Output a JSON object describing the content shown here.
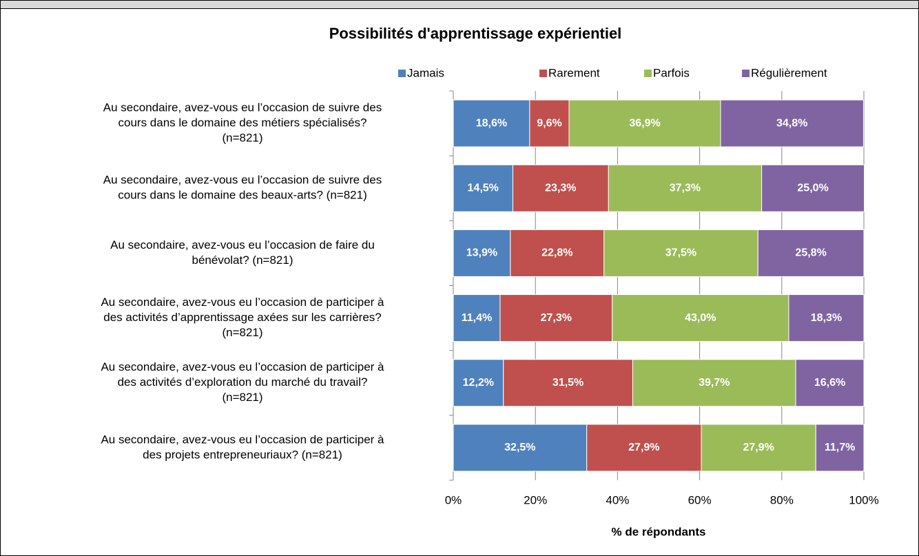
{
  "chart_data": {
    "type": "stacked-barh",
    "title": "Possibilités d'apprentissage expérientiel",
    "xlabel": "% de répondants",
    "categories": [
      [
        "Au secondaire, avez-vous eu l’occasion de suivre des",
        "cours dans le domaine des métiers spécialisés?",
        "(n=821)"
      ],
      [
        "Au secondaire, avez-vous eu l’occasion de suivre des",
        "cours dans le domaine des beaux-arts? (n=821)"
      ],
      [
        "Au secondaire, avez-vous eu l’occasion de faire du",
        "bénévolat? (n=821)"
      ],
      [
        "Au secondaire, avez-vous eu l’occasion de participer à",
        "des activités d’apprentissage axées sur les carrières?",
        "(n=821)"
      ],
      [
        "Au secondaire, avez-vous eu l’occasion de participer à",
        "des activités d’exploration du marché du travail?",
        "(n=821)"
      ],
      [
        "Au secondaire, avez-vous eu l’occasion de participer à",
        "des projets entrepreneuriaux? (n=821)"
      ]
    ],
    "series": [
      {
        "name": "Jamais",
        "color": "#4f81bd",
        "values": [
          18.6,
          14.5,
          13.9,
          11.4,
          12.2,
          32.5
        ],
        "value_labels": [
          "18,6%",
          "14,5%",
          "13,9%",
          "11,4%",
          "12,2%",
          "32,5%"
        ]
      },
      {
        "name": "Rarement",
        "color": "#c0504d",
        "values": [
          9.6,
          23.3,
          22.8,
          27.3,
          31.5,
          27.9
        ],
        "value_labels": [
          "9,6%",
          "23,3%",
          "22,8%",
          "27,3%",
          "31,5%",
          "27,9%"
        ]
      },
      {
        "name": "Parfois",
        "color": "#9bbb59",
        "values": [
          36.9,
          37.3,
          37.5,
          43.0,
          39.7,
          27.9
        ],
        "value_labels": [
          "36,9%",
          "37,3%",
          "37,5%",
          "43,0%",
          "39,7%",
          "27,9%"
        ]
      },
      {
        "name": "Régulièrement",
        "color": "#8064a2",
        "values": [
          34.8,
          25.0,
          25.8,
          18.3,
          16.6,
          11.7
        ],
        "value_labels": [
          "34,8%",
          "25,0%",
          "25,8%",
          "18,3%",
          "16,6%",
          "11,7%"
        ]
      }
    ],
    "xlim": [
      0,
      100
    ],
    "xticks": [
      {
        "value": 0,
        "label": "0%"
      },
      {
        "value": 20,
        "label": "20%"
      },
      {
        "value": 40,
        "label": "40%"
      },
      {
        "value": 60,
        "label": "60%"
      },
      {
        "value": 80,
        "label": "80%"
      },
      {
        "value": 100,
        "label": "100%"
      }
    ],
    "grid": true,
    "legend": "top"
  }
}
